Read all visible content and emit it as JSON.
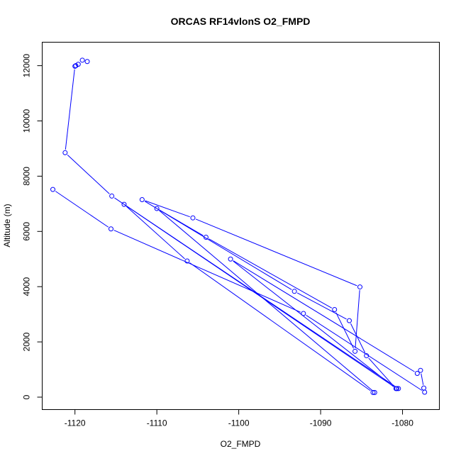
{
  "chart_data": {
    "type": "line",
    "title": "ORCAS RF14vlonS O2_FMPD",
    "xlabel": "O2_FMPD",
    "ylabel": "Altitude (m)",
    "xlim": [
      -1124.0,
      -1075.5
    ],
    "ylim": [
      -450,
      12850
    ],
    "xticks": [
      -1120,
      -1110,
      -1100,
      -1090,
      -1080
    ],
    "yticks": [
      0,
      2000,
      4000,
      6000,
      8000,
      10000,
      12000
    ],
    "grid": false,
    "marker": "open-circle",
    "series": [
      {
        "color": "#0000ff",
        "points": [
          {
            "x": -1118.5,
            "y": 12150
          },
          {
            "x": -1119.1,
            "y": 12200
          },
          {
            "x": -1119.6,
            "y": 12050
          },
          {
            "x": -1119.9,
            "y": 12000
          },
          {
            "x": -1120.0,
            "y": 11980
          },
          {
            "x": -1121.2,
            "y": 8850
          },
          {
            "x": -1115.5,
            "y": 7280
          },
          {
            "x": -1080.7,
            "y": 310
          },
          {
            "x": -1080.5,
            "y": 310
          },
          {
            "x": -1114.0,
            "y": 6980
          },
          {
            "x": -1106.3,
            "y": 4930
          },
          {
            "x": -1083.6,
            "y": 170
          },
          {
            "x": -1083.4,
            "y": 170
          },
          {
            "x": -1110.0,
            "y": 6830
          },
          {
            "x": -1104.0,
            "y": 5790
          },
          {
            "x": -1088.3,
            "y": 3170
          },
          {
            "x": -1085.8,
            "y": 1660
          },
          {
            "x": -1085.2,
            "y": 3990
          },
          {
            "x": -1105.6,
            "y": 6490
          },
          {
            "x": -1111.8,
            "y": 7150
          },
          {
            "x": -1093.2,
            "y": 3830
          },
          {
            "x": -1086.5,
            "y": 2770
          },
          {
            "x": -1084.4,
            "y": 1500
          },
          {
            "x": -1080.8,
            "y": 310
          },
          {
            "x": -1101.0,
            "y": 5000
          },
          {
            "x": -1078.2,
            "y": 860
          },
          {
            "x": -1077.8,
            "y": 970
          },
          {
            "x": -1077.4,
            "y": 330
          },
          {
            "x": -1077.3,
            "y": 180
          },
          {
            "x": -1092.1,
            "y": 3030
          },
          {
            "x": -1115.6,
            "y": 6090
          },
          {
            "x": -1122.7,
            "y": 7520
          }
        ]
      }
    ]
  }
}
